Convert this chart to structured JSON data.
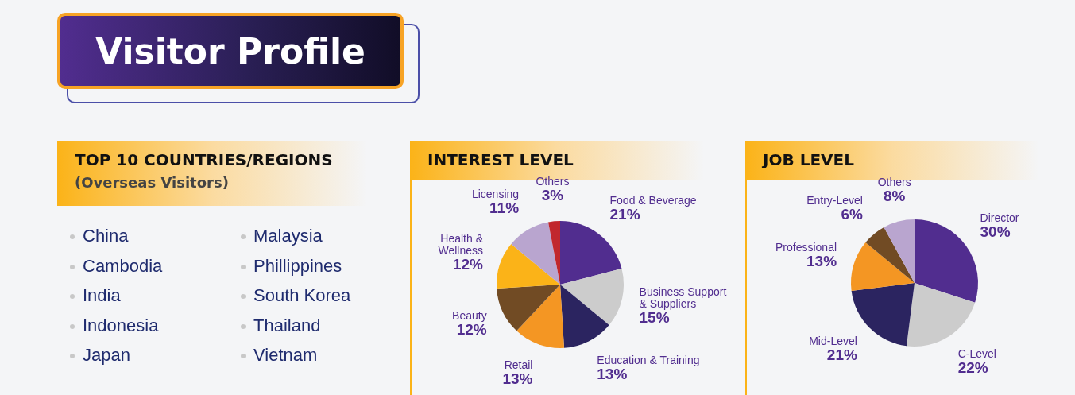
{
  "chart_data": [
    {
      "type": "other",
      "title": "Visitor Profile"
    },
    {
      "type": "other",
      "title": "TOP 10 COUNTRIES/REGIONS",
      "subtitle": "(Overseas Visitors)",
      "annotations": [
        "China",
        "Cambodia",
        "India",
        "Indonesia",
        "Japan",
        "Malaysia",
        "Phillippines",
        "South Korea",
        "Thailand",
        "Vietnam"
      ]
    },
    {
      "type": "pie",
      "title": "INTEREST LEVEL",
      "categories": [
        "Food & Beverage",
        "Business Support & Suppliers",
        "Education & Training",
        "Retail",
        "Beauty",
        "Health & Wellness",
        "Licensing",
        "Others"
      ],
      "values": [
        21,
        15,
        13,
        13,
        12,
        12,
        11,
        3
      ],
      "value_labels": [
        "21%",
        "15%",
        "13%",
        "13%",
        "12%",
        "12%",
        "11%",
        "3%"
      ],
      "colors": [
        "#512d8f",
        "#cccccc",
        "#2b2460",
        "#f49623",
        "#714b24",
        "#fbb318",
        "#b9a5cf",
        "#c1272d"
      ]
    },
    {
      "type": "pie",
      "title": "JOB LEVEL",
      "categories": [
        "Director",
        "C-Level",
        "Mid-Level",
        "Professional",
        "Entry-Level",
        "Others"
      ],
      "values": [
        30,
        22,
        21,
        13,
        6,
        8
      ],
      "value_labels": [
        "30%",
        "22%",
        "21%",
        "13%",
        "6%",
        "8%"
      ],
      "colors": [
        "#512d8f",
        "#cccccc",
        "#2b2460",
        "#f49623",
        "#714b24",
        "#b9a5cf"
      ]
    }
  ]
}
